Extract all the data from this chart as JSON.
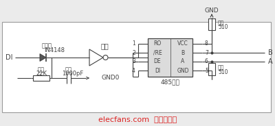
{
  "bg_color": "#ebebeb",
  "line_color": "#404040",
  "text_color": "#404040",
  "red_text": "#dd2222",
  "figsize": [
    4.0,
    1.84
  ],
  "dpi": 100,
  "watermark": "elecfans.com  电子发烧友",
  "label_di": "DI",
  "label_diode_cn": "二极管",
  "label_diode_en": "IN4148",
  "label_notgate": "非门",
  "label_resistor1_cn": "电阻",
  "label_resistor1_val": "22K",
  "label_cap_cn": "电容",
  "label_cap_val": "1000pF",
  "label_gnd0": "GND0",
  "label_gnd": "GND",
  "label_485": "485芜片",
  "label_B": "B",
  "label_A": "A",
  "label_res510_cn": "电阻",
  "label_res510_val": "510",
  "pins_left_nums": [
    "1",
    "2",
    "3",
    "4"
  ],
  "pins_left_labels": [
    "RO",
    "/RE",
    "DE",
    "DI"
  ],
  "pins_right_nums": [
    "8",
    "7",
    "6",
    "5"
  ],
  "pins_right_labels": [
    "VCC",
    "B",
    "A",
    "GND"
  ],
  "border": [
    3,
    20,
    394,
    152
  ]
}
